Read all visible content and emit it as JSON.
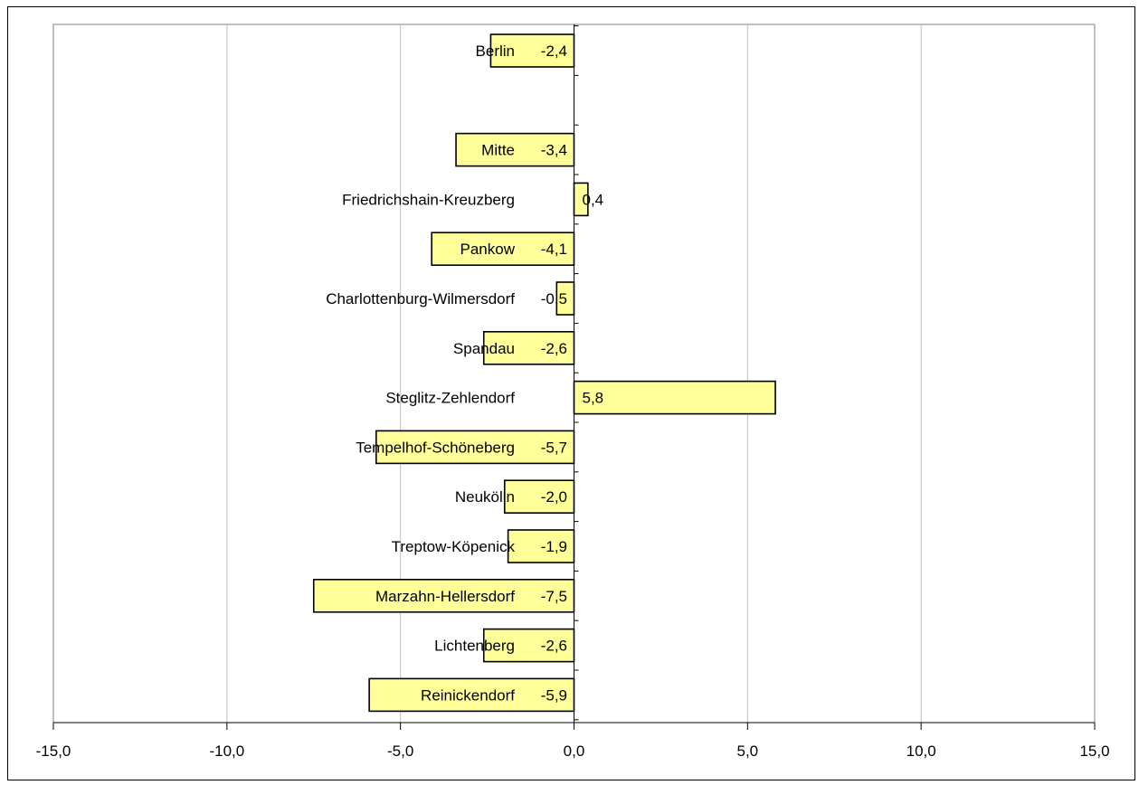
{
  "chart_data": {
    "type": "bar",
    "orientation": "horizontal",
    "title": "",
    "xlabel": "",
    "ylabel": "",
    "xlim": [
      -15,
      15
    ],
    "xticks": [
      -15,
      -10,
      -5,
      0,
      5,
      10,
      15
    ],
    "xtick_labels": [
      "-15,0",
      "-10,0",
      "-5,0",
      "0,0",
      "5,0",
      "10,0",
      "15,0"
    ],
    "grid": "vertical",
    "legend": "none",
    "bar_color": "#ffff99",
    "bar_stroke": "#000000",
    "categories": [
      "Berlin",
      "",
      "Mitte",
      "Friedrichshain-Kreuzberg",
      "Pankow",
      "Charlottenburg-Wilmersdorf",
      "Spandau",
      "Steglitz-Zehlendorf",
      "Tempelhof-Schöneberg",
      "Neukölln",
      "Treptow-Köpenick",
      "Marzahn-Hellersdorf",
      "Lichtenberg",
      "Reinickendorf"
    ],
    "values": [
      -2.4,
      null,
      -3.4,
      0.4,
      -4.1,
      -0.5,
      -2.6,
      5.8,
      -5.7,
      -2.0,
      -1.9,
      -7.5,
      -2.6,
      -5.9
    ],
    "value_labels": [
      "-2,4",
      "",
      "-3,4",
      "0,4",
      "-4,1",
      "-0,5",
      "-2,6",
      "5,8",
      "-5,7",
      "-2,0",
      "-1,9",
      "-7,5",
      "-2,6",
      "-5,9"
    ]
  }
}
